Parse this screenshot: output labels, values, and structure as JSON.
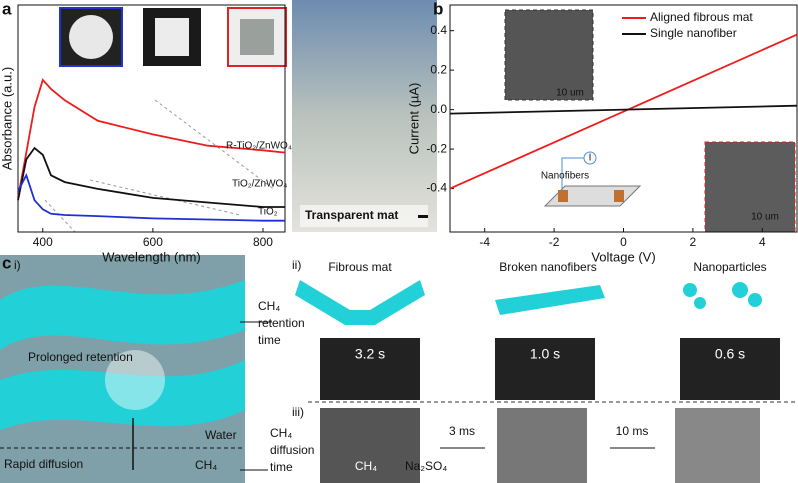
{
  "chart_data": [
    {
      "type": "line",
      "panel": "a",
      "xlabel": "Wavelength (nm)",
      "ylabel": "Absorbance (a.u.)",
      "x": [
        355,
        370,
        385,
        400,
        415,
        440,
        500,
        600,
        700,
        800,
        840
      ],
      "xlim": [
        355,
        840
      ],
      "xticks": [
        400,
        600,
        800
      ],
      "ylim": [
        0,
        1
      ],
      "series": [
        {
          "name": "R-TiO₂/ZnWO₄",
          "color": "#ee1c1c",
          "values": [
            0.15,
            0.35,
            0.55,
            0.67,
            0.63,
            0.58,
            0.49,
            0.43,
            0.38,
            0.36,
            0.35
          ]
        },
        {
          "name": "TiO₂/ZnWO₄",
          "color": "#111111",
          "values": [
            0.14,
            0.32,
            0.37,
            0.34,
            0.25,
            0.22,
            0.19,
            0.15,
            0.13,
            0.11,
            0.11
          ]
        },
        {
          "name": "TiO₂",
          "color": "#1f2fd6",
          "values": [
            0.18,
            0.25,
            0.14,
            0.1,
            0.08,
            0.075,
            0.07,
            0.06,
            0.055,
            0.05,
            0.05
          ]
        }
      ],
      "photo_label": "Transparent mat"
    },
    {
      "type": "line",
      "panel": "b",
      "xlabel": "Voltage (V)",
      "ylabel": "Current (µA)",
      "x": [
        -5,
        5
      ],
      "xlim": [
        -5,
        5
      ],
      "xticks": [
        -4,
        -2,
        0,
        2,
        4
      ],
      "ylim": [
        -0.62,
        0.53
      ],
      "yticks": [
        -0.4,
        -0.2,
        {
          "value": 0,
          "label": "0.0"
        },
        0.2,
        0.4
      ],
      "series": [
        {
          "name": "Aligned fibrous mat",
          "color": "#ee1c1c",
          "values": [
            -0.4,
            0.38
          ]
        },
        {
          "name": "Single nanofiber",
          "color": "#111111",
          "values": [
            -0.02,
            0.02
          ]
        }
      ],
      "annotations": [
        "10 um",
        "10 um",
        "Nanofibers",
        "I"
      ]
    }
  ],
  "panel_c": {
    "panel": "c",
    "i": "i)",
    "ii": "ii)",
    "iii": "iii)",
    "prolonged": "Prolonged retention",
    "water": "Water",
    "rapid": "Rapid diffusion",
    "ch4": "CH₄",
    "retention": [
      "CH₄",
      "retention",
      "time"
    ],
    "diffusion": [
      "CH₄",
      "diffusion",
      "time"
    ],
    "headers": [
      "Fibrous mat",
      "Broken nanofibers",
      "Nanoparticles"
    ],
    "times": [
      "3.2 s",
      "1.0 s",
      "0.6 s"
    ],
    "steps": [
      "3 ms",
      "10 ms"
    ],
    "gas": "CH₄",
    "solution": "Na₂SO₄"
  }
}
